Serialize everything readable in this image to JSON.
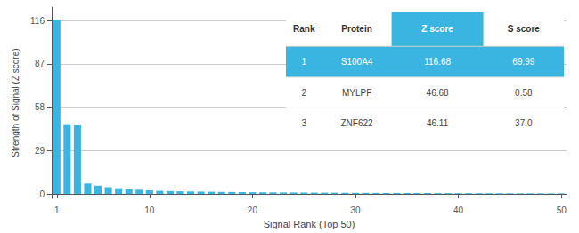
{
  "chart_data": {
    "type": "bar",
    "xlabel": "Signal Rank (Top 50)",
    "ylabel": "Strength of Signal (Z score)",
    "x": [
      1,
      2,
      3,
      4,
      5,
      6,
      7,
      8,
      9,
      10,
      11,
      12,
      13,
      14,
      15,
      16,
      17,
      18,
      19,
      20,
      21,
      22,
      23,
      24,
      25,
      26,
      27,
      28,
      29,
      30,
      31,
      32,
      33,
      34,
      35,
      36,
      37,
      38,
      39,
      40,
      41,
      42,
      43,
      44,
      45,
      46,
      47,
      48,
      49,
      50
    ],
    "values": [
      116.68,
      46.68,
      46.11,
      7.0,
      5.5,
      4.5,
      3.8,
      3.2,
      2.8,
      2.4,
      2.1,
      1.9,
      1.75,
      1.65,
      1.55,
      1.45,
      1.35,
      1.28,
      1.22,
      1.16,
      1.1,
      1.05,
      1.01,
      0.97,
      0.93,
      0.89,
      0.86,
      0.83,
      0.8,
      0.77,
      0.74,
      0.71,
      0.69,
      0.67,
      0.65,
      0.63,
      0.61,
      0.59,
      0.57,
      0.55,
      0.53,
      0.51,
      0.5,
      0.48,
      0.47,
      0.45,
      0.44,
      0.43,
      0.41,
      0.4
    ],
    "color": "#3ab4e0",
    "xlim": [
      0.5,
      50.5
    ],
    "ylim": [
      -3,
      125
    ],
    "xticks": [
      1,
      10,
      20,
      30,
      40,
      50
    ],
    "yticks": [
      0,
      29,
      58,
      87,
      116
    ],
    "grid": true,
    "table": {
      "columns": [
        "Rank",
        "Protein",
        "Z score",
        "S score"
      ],
      "rows": [
        [
          "1",
          "S100A4",
          "116.68",
          "69.99"
        ],
        [
          "2",
          "MYLPF",
          "46.68",
          "0.58"
        ],
        [
          "3",
          "ZNF622",
          "46.11",
          "37.0"
        ]
      ],
      "color": "#3ab4e0"
    }
  }
}
